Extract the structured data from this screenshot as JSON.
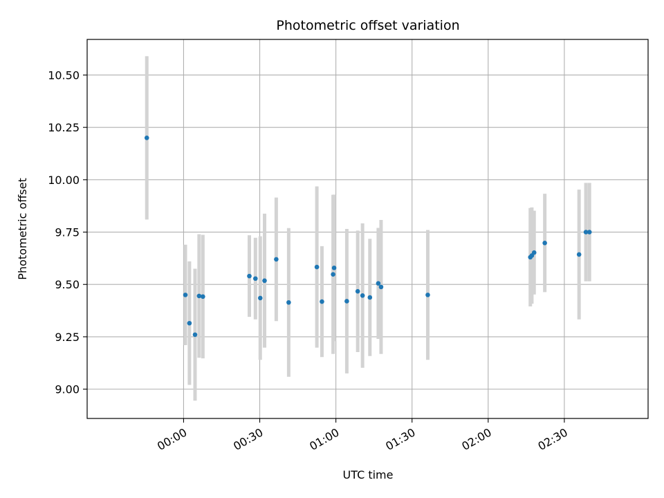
{
  "chart_data": {
    "type": "scatter",
    "title": "Photometric offset variation",
    "xlabel": "UTC time",
    "ylabel": "Photometric offset",
    "x_unit": "minutes after 00:00 UTC",
    "xlim": [
      -38,
      183
    ],
    "ylim": [
      8.86,
      10.67
    ],
    "grid": true,
    "error_bar_color": "#d3d3d3",
    "point_color": "#1f77b4",
    "x_ticks": [
      {
        "value": 0,
        "label": "00:00"
      },
      {
        "value": 30,
        "label": "00:30"
      },
      {
        "value": 60,
        "label": "01:00"
      },
      {
        "value": 90,
        "label": "01:30"
      },
      {
        "value": 120,
        "label": "02:00"
      },
      {
        "value": 150,
        "label": "02:30"
      }
    ],
    "y_ticks": [
      {
        "value": 9.0,
        "label": "9.00"
      },
      {
        "value": 9.25,
        "label": "9.25"
      },
      {
        "value": 9.5,
        "label": "9.50"
      },
      {
        "value": 9.75,
        "label": "9.75"
      },
      {
        "value": 10.0,
        "label": "10.00"
      },
      {
        "value": 10.25,
        "label": "10.25"
      },
      {
        "value": 10.5,
        "label": "10.50"
      }
    ],
    "points": [
      {
        "x": -14.5,
        "y": 10.2,
        "err": 0.39
      },
      {
        "x": 0.7,
        "y": 9.45,
        "err": 0.24
      },
      {
        "x": 2.3,
        "y": 9.315,
        "err": 0.295
      },
      {
        "x": 4.5,
        "y": 9.26,
        "err": 0.315
      },
      {
        "x": 6.1,
        "y": 9.445,
        "err": 0.295
      },
      {
        "x": 7.6,
        "y": 9.442,
        "err": 0.295
      },
      {
        "x": 25.9,
        "y": 9.54,
        "err": 0.195
      },
      {
        "x": 28.3,
        "y": 9.528,
        "err": 0.195
      },
      {
        "x": 30.2,
        "y": 9.435,
        "err": 0.295
      },
      {
        "x": 31.9,
        "y": 9.518,
        "err": 0.32
      },
      {
        "x": 36.5,
        "y": 9.62,
        "err": 0.295
      },
      {
        "x": 41.4,
        "y": 9.414,
        "err": 0.355
      },
      {
        "x": 52.5,
        "y": 9.583,
        "err": 0.385
      },
      {
        "x": 54.5,
        "y": 9.418,
        "err": 0.265
      },
      {
        "x": 58.9,
        "y": 9.548,
        "err": 0.38
      },
      {
        "x": 59.3,
        "y": 9.579,
        "err": 0.35
      },
      {
        "x": 64.3,
        "y": 9.42,
        "err": 0.345
      },
      {
        "x": 68.6,
        "y": 9.467,
        "err": 0.29
      },
      {
        "x": 70.5,
        "y": 9.447,
        "err": 0.345
      },
      {
        "x": 73.4,
        "y": 9.438,
        "err": 0.28
      },
      {
        "x": 76.7,
        "y": 9.505,
        "err": 0.265
      },
      {
        "x": 77.8,
        "y": 9.488,
        "err": 0.32
      },
      {
        "x": 96.2,
        "y": 9.45,
        "err": 0.31
      },
      {
        "x": 136.6,
        "y": 9.63,
        "err": 0.235
      },
      {
        "x": 137.2,
        "y": 9.638,
        "err": 0.23
      },
      {
        "x": 138.1,
        "y": 9.652,
        "err": 0.2
      },
      {
        "x": 142.3,
        "y": 9.698,
        "err": 0.235
      },
      {
        "x": 155.8,
        "y": 9.643,
        "err": 0.31
      },
      {
        "x": 158.5,
        "y": 9.75,
        "err": 0.235
      },
      {
        "x": 159.9,
        "y": 9.75,
        "err": 0.235
      }
    ]
  }
}
